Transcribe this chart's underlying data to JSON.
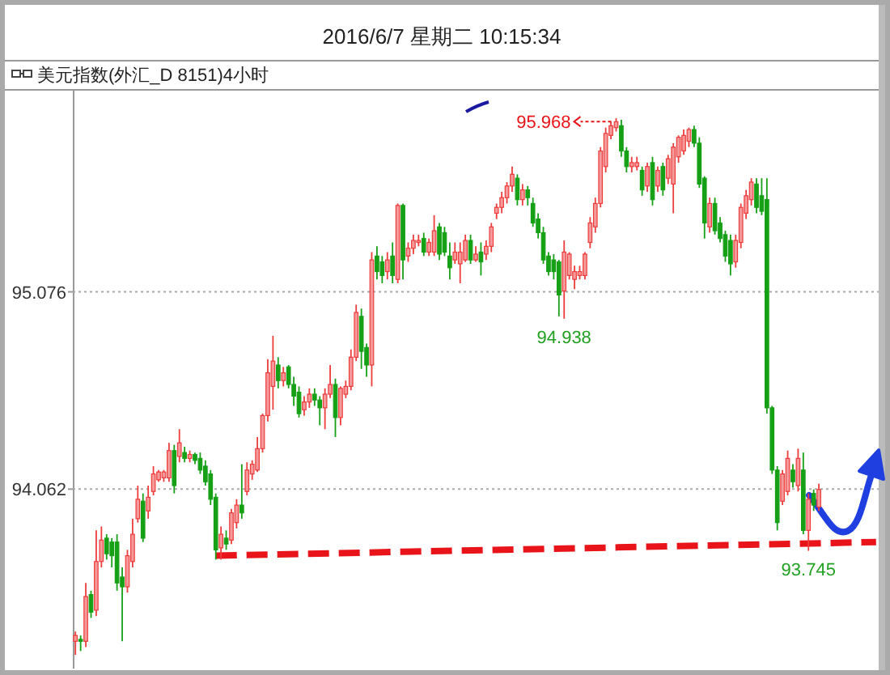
{
  "chart_data": {
    "type": "candlestick",
    "title": "2016/6/7 星期二 10:15:34",
    "subtitle": "美元指数(外汇_D 8151)4小时",
    "categories": [
      null,
      null,
      null,
      null,
      null,
      null,
      null,
      null,
      null,
      null,
      null,
      null,
      null,
      null,
      null,
      null,
      null,
      null,
      null,
      null,
      null,
      null,
      null,
      null,
      null,
      null,
      null,
      null,
      null,
      null,
      null,
      null,
      null,
      null,
      null,
      null,
      null,
      null,
      null,
      null,
      null,
      null,
      null,
      null,
      null,
      null,
      null,
      null,
      null,
      null,
      null,
      null,
      null,
      null,
      null,
      null,
      null,
      null,
      null,
      null,
      null,
      null,
      null,
      null,
      null,
      null,
      null,
      null,
      null,
      null,
      null,
      null,
      null,
      null,
      null,
      null,
      null,
      null,
      null,
      null,
      null,
      null,
      null,
      null,
      null,
      null,
      null,
      null,
      null,
      null,
      null,
      null,
      null,
      null,
      null,
      null,
      null,
      null,
      null,
      null,
      null,
      null,
      null,
      null,
      null,
      null,
      null,
      null,
      null,
      null,
      null,
      null,
      null,
      null,
      null,
      null,
      null,
      null,
      null,
      null,
      null,
      null,
      null,
      null,
      null,
      null,
      null,
      null,
      null,
      null,
      null,
      null,
      null,
      null,
      null,
      null,
      null,
      null,
      null,
      null,
      null,
      null,
      null,
      null,
      null,
      null,
      null,
      null,
      null,
      null,
      null,
      null,
      null,
      null,
      null
    ],
    "ohlc": [
      [
        93.28,
        93.33,
        93.21,
        93.31
      ],
      [
        93.29,
        93.31,
        93.23,
        93.28
      ],
      [
        93.28,
        93.58,
        93.25,
        93.51
      ],
      [
        93.52,
        93.54,
        93.4,
        93.43
      ],
      [
        93.44,
        93.85,
        93.41,
        93.69
      ],
      [
        93.69,
        93.87,
        93.66,
        93.8
      ],
      [
        93.81,
        93.83,
        93.7,
        93.73
      ],
      [
        93.79,
        93.81,
        93.66,
        93.72
      ],
      [
        93.79,
        93.83,
        93.54,
        93.58
      ],
      [
        93.61,
        93.66,
        93.28,
        93.56
      ],
      [
        93.56,
        93.75,
        93.53,
        93.72
      ],
      [
        93.69,
        93.91,
        93.66,
        93.83
      ],
      [
        93.91,
        94.08,
        93.89,
        94.01
      ],
      [
        94.0,
        94.04,
        93.79,
        93.81
      ],
      [
        93.95,
        94.08,
        93.91,
        94.02
      ],
      [
        94.05,
        94.18,
        94.03,
        94.14
      ],
      [
        94.11,
        94.16,
        94.1,
        94.15
      ],
      [
        94.12,
        94.16,
        94.1,
        94.15
      ],
      [
        94.12,
        94.3,
        94.1,
        94.26
      ],
      [
        94.26,
        94.29,
        94.04,
        94.08
      ],
      [
        94.23,
        94.37,
        94.2,
        94.3
      ],
      [
        94.25,
        94.28,
        94.2,
        94.22
      ],
      [
        94.22,
        94.26,
        94.2,
        94.24
      ],
      [
        94.24,
        94.25,
        94.19,
        94.21
      ],
      [
        94.22,
        94.25,
        94.14,
        94.16
      ],
      [
        94.18,
        94.21,
        94.08,
        94.1
      ],
      [
        94.14,
        94.16,
        93.98,
        94.01
      ],
      [
        94.02,
        94.04,
        93.7,
        93.75
      ],
      [
        93.76,
        93.87,
        93.7,
        93.83
      ],
      [
        93.81,
        93.85,
        93.75,
        93.78
      ],
      [
        93.8,
        93.96,
        93.78,
        93.94
      ],
      [
        93.89,
        94.01,
        93.86,
        93.98
      ],
      [
        93.98,
        94.19,
        93.91,
        93.94
      ],
      [
        94.05,
        94.2,
        94.03,
        94.16
      ],
      [
        94.14,
        94.21,
        94.11,
        94.19
      ],
      [
        94.16,
        94.33,
        94.15,
        94.27
      ],
      [
        94.27,
        94.45,
        94.25,
        94.44
      ],
      [
        94.44,
        94.73,
        94.41,
        94.66
      ],
      [
        94.59,
        94.85,
        94.47,
        94.72
      ],
      [
        94.7,
        94.74,
        94.58,
        94.62
      ],
      [
        94.62,
        94.69,
        94.59,
        94.66
      ],
      [
        94.69,
        94.7,
        94.58,
        94.6
      ],
      [
        94.6,
        94.64,
        94.49,
        94.54
      ],
      [
        94.56,
        94.59,
        94.43,
        94.45
      ],
      [
        94.47,
        94.54,
        94.44,
        94.51
      ],
      [
        94.51,
        94.58,
        94.48,
        94.55
      ],
      [
        94.55,
        94.58,
        94.49,
        94.52
      ],
      [
        94.52,
        94.54,
        94.39,
        94.48
      ],
      [
        94.48,
        94.58,
        94.37,
        94.55
      ],
      [
        94.55,
        94.7,
        94.53,
        94.6
      ],
      [
        94.6,
        94.63,
        94.33,
        94.43
      ],
      [
        94.43,
        94.59,
        94.39,
        94.58
      ],
      [
        94.55,
        94.62,
        94.53,
        94.59
      ],
      [
        94.59,
        94.78,
        94.57,
        94.74
      ],
      [
        94.74,
        95.01,
        94.72,
        94.97
      ],
      [
        94.95,
        94.99,
        94.68,
        94.77
      ],
      [
        94.79,
        94.81,
        94.64,
        94.7
      ],
      [
        94.7,
        95.28,
        94.59,
        95.24
      ],
      [
        95.26,
        95.31,
        95.14,
        95.18
      ],
      [
        95.23,
        95.26,
        95.12,
        95.16
      ],
      [
        95.18,
        95.28,
        95.14,
        95.24
      ],
      [
        95.26,
        95.33,
        95.12,
        95.16
      ],
      [
        95.14,
        95.53,
        95.12,
        95.52
      ],
      [
        95.52,
        95.53,
        95.14,
        95.24
      ],
      [
        95.26,
        95.33,
        95.23,
        95.3
      ],
      [
        95.3,
        95.37,
        95.27,
        95.34
      ],
      [
        95.33,
        95.37,
        95.31,
        95.34
      ],
      [
        95.35,
        95.38,
        95.26,
        95.28
      ],
      [
        95.28,
        95.35,
        95.26,
        95.33
      ],
      [
        95.28,
        95.47,
        95.26,
        95.39
      ],
      [
        95.41,
        95.43,
        95.24,
        95.27
      ],
      [
        95.38,
        95.41,
        95.26,
        95.28
      ],
      [
        95.26,
        95.33,
        95.14,
        95.2
      ],
      [
        95.24,
        95.33,
        95.22,
        95.28
      ],
      [
        95.22,
        95.33,
        95.12,
        95.28
      ],
      [
        95.24,
        95.37,
        95.23,
        95.34
      ],
      [
        95.34,
        95.37,
        95.22,
        95.24
      ],
      [
        95.24,
        95.31,
        95.23,
        95.27
      ],
      [
        95.28,
        95.33,
        95.16,
        95.23
      ],
      [
        95.27,
        95.34,
        95.24,
        95.31
      ],
      [
        95.31,
        95.43,
        95.28,
        95.41
      ],
      [
        95.48,
        95.53,
        95.45,
        95.51
      ],
      [
        95.51,
        95.59,
        95.48,
        95.56
      ],
      [
        95.56,
        95.64,
        95.53,
        95.62
      ],
      [
        95.62,
        95.72,
        95.59,
        95.68
      ],
      [
        95.66,
        95.68,
        95.52,
        95.55
      ],
      [
        95.55,
        95.63,
        95.52,
        95.6
      ],
      [
        95.6,
        95.62,
        95.52,
        95.56
      ],
      [
        95.53,
        95.56,
        95.41,
        95.43
      ],
      [
        95.45,
        95.48,
        95.35,
        95.38
      ],
      [
        95.38,
        95.41,
        95.22,
        95.24
      ],
      [
        95.26,
        95.28,
        95.16,
        95.18
      ],
      [
        95.24,
        95.27,
        95.14,
        95.18
      ],
      [
        95.23,
        95.24,
        94.95,
        95.06
      ],
      [
        95.08,
        95.34,
        94.938,
        95.28
      ],
      [
        95.16,
        95.28,
        95.14,
        95.27
      ],
      [
        95.14,
        95.21,
        95.09,
        95.18
      ],
      [
        95.16,
        95.21,
        95.14,
        95.18
      ],
      [
        95.16,
        95.28,
        95.14,
        95.27
      ],
      [
        95.33,
        95.46,
        95.3,
        95.43
      ],
      [
        95.41,
        95.56,
        95.38,
        95.53
      ],
      [
        95.53,
        95.82,
        95.51,
        95.8
      ],
      [
        95.72,
        95.92,
        95.69,
        95.89
      ],
      [
        95.88,
        95.95,
        95.86,
        95.93
      ],
      [
        95.92,
        95.968,
        95.9,
        95.95
      ],
      [
        95.93,
        95.96,
        95.77,
        95.8
      ],
      [
        95.8,
        95.82,
        95.69,
        95.72
      ],
      [
        95.72,
        95.77,
        95.69,
        95.74
      ],
      [
        95.72,
        95.77,
        95.7,
        95.74
      ],
      [
        95.7,
        95.72,
        95.57,
        95.6
      ],
      [
        95.62,
        95.74,
        95.59,
        95.72
      ],
      [
        95.74,
        95.77,
        95.52,
        95.55
      ],
      [
        95.62,
        95.72,
        95.59,
        95.7
      ],
      [
        95.72,
        95.74,
        95.57,
        95.6
      ],
      [
        95.66,
        95.78,
        95.63,
        95.76
      ],
      [
        95.63,
        95.84,
        95.48,
        95.82
      ],
      [
        95.77,
        95.88,
        95.74,
        95.87
      ],
      [
        95.8,
        95.91,
        95.78,
        95.88
      ],
      [
        95.85,
        95.92,
        95.82,
        95.91
      ],
      [
        95.91,
        95.93,
        95.82,
        95.84
      ],
      [
        95.84,
        95.87,
        95.61,
        95.63
      ],
      [
        95.66,
        95.67,
        95.35,
        95.43
      ],
      [
        95.41,
        95.56,
        95.38,
        95.53
      ],
      [
        95.53,
        95.56,
        95.37,
        95.39
      ],
      [
        95.43,
        95.46,
        95.33,
        95.35
      ],
      [
        95.37,
        95.39,
        95.23,
        95.26
      ],
      [
        95.34,
        95.37,
        95.16,
        95.22
      ],
      [
        95.23,
        95.37,
        95.2,
        95.34
      ],
      [
        95.33,
        95.53,
        95.3,
        95.51
      ],
      [
        95.48,
        95.6,
        95.45,
        95.57
      ],
      [
        95.55,
        95.66,
        95.52,
        95.64
      ],
      [
        95.63,
        95.66,
        95.48,
        95.51
      ],
      [
        95.57,
        95.66,
        95.47,
        95.49
      ],
      [
        95.55,
        95.66,
        94.45,
        94.48
      ],
      [
        94.48,
        94.49,
        94.14,
        94.16
      ],
      [
        94.16,
        94.18,
        93.85,
        93.89
      ],
      [
        94.0,
        94.16,
        93.98,
        94.14
      ],
      [
        94.05,
        94.26,
        94.03,
        94.22
      ],
      [
        94.16,
        94.19,
        94.07,
        94.1
      ],
      [
        94.08,
        94.27,
        94.05,
        94.22
      ],
      [
        94.16,
        94.25,
        93.83,
        93.85
      ],
      [
        93.85,
        94.04,
        93.745,
        94.01
      ],
      [
        94.04,
        94.06,
        93.95,
        93.98
      ],
      [
        93.97,
        94.09,
        93.95,
        94.06
      ],
      null,
      null,
      null,
      null,
      null,
      null,
      null,
      null,
      null,
      null,
      null
    ],
    "ylim": [
      93.14,
      96.11
    ],
    "yticks": [
      95.076,
      94.062
    ],
    "grid": "y",
    "tick_labels": "y",
    "series": [
      {
        "type": "line",
        "color": "#e8141a",
        "line_style": "dashed",
        "values": [
          null,
          null,
          null,
          null,
          null,
          null,
          null,
          null,
          null,
          null,
          null,
          null,
          null,
          null,
          null,
          null,
          null,
          null,
          null,
          null,
          null,
          null,
          null,
          null,
          null,
          null,
          null,
          93.72,
          null,
          null,
          null,
          null,
          null,
          null,
          null,
          null,
          null,
          null,
          null,
          null,
          null,
          null,
          null,
          null,
          null,
          null,
          null,
          null,
          null,
          null,
          null,
          null,
          null,
          null,
          null,
          null,
          null,
          null,
          null,
          null,
          null,
          null,
          null,
          null,
          null,
          null,
          null,
          null,
          null,
          null,
          null,
          null,
          null,
          null,
          null,
          null,
          null,
          null,
          null,
          null,
          null,
          null,
          null,
          null,
          null,
          null,
          null,
          null,
          null,
          null,
          null,
          null,
          null,
          null,
          null,
          null,
          null,
          null,
          null,
          null,
          null,
          null,
          null,
          null,
          null,
          null,
          null,
          null,
          null,
          null,
          null,
          null,
          null,
          null,
          null,
          null,
          null,
          null,
          null,
          null,
          null,
          null,
          null,
          null,
          null,
          null,
          null,
          null,
          null,
          null,
          null,
          null,
          null,
          null,
          null,
          null,
          null,
          null,
          null,
          null,
          null,
          null,
          null,
          null,
          null,
          null,
          null,
          null,
          null,
          null,
          null,
          null,
          null,
          null,
          93.79
        ]
      }
    ],
    "annotations": [
      "95.968",
      "94.938",
      "93.745"
    ]
  }
}
